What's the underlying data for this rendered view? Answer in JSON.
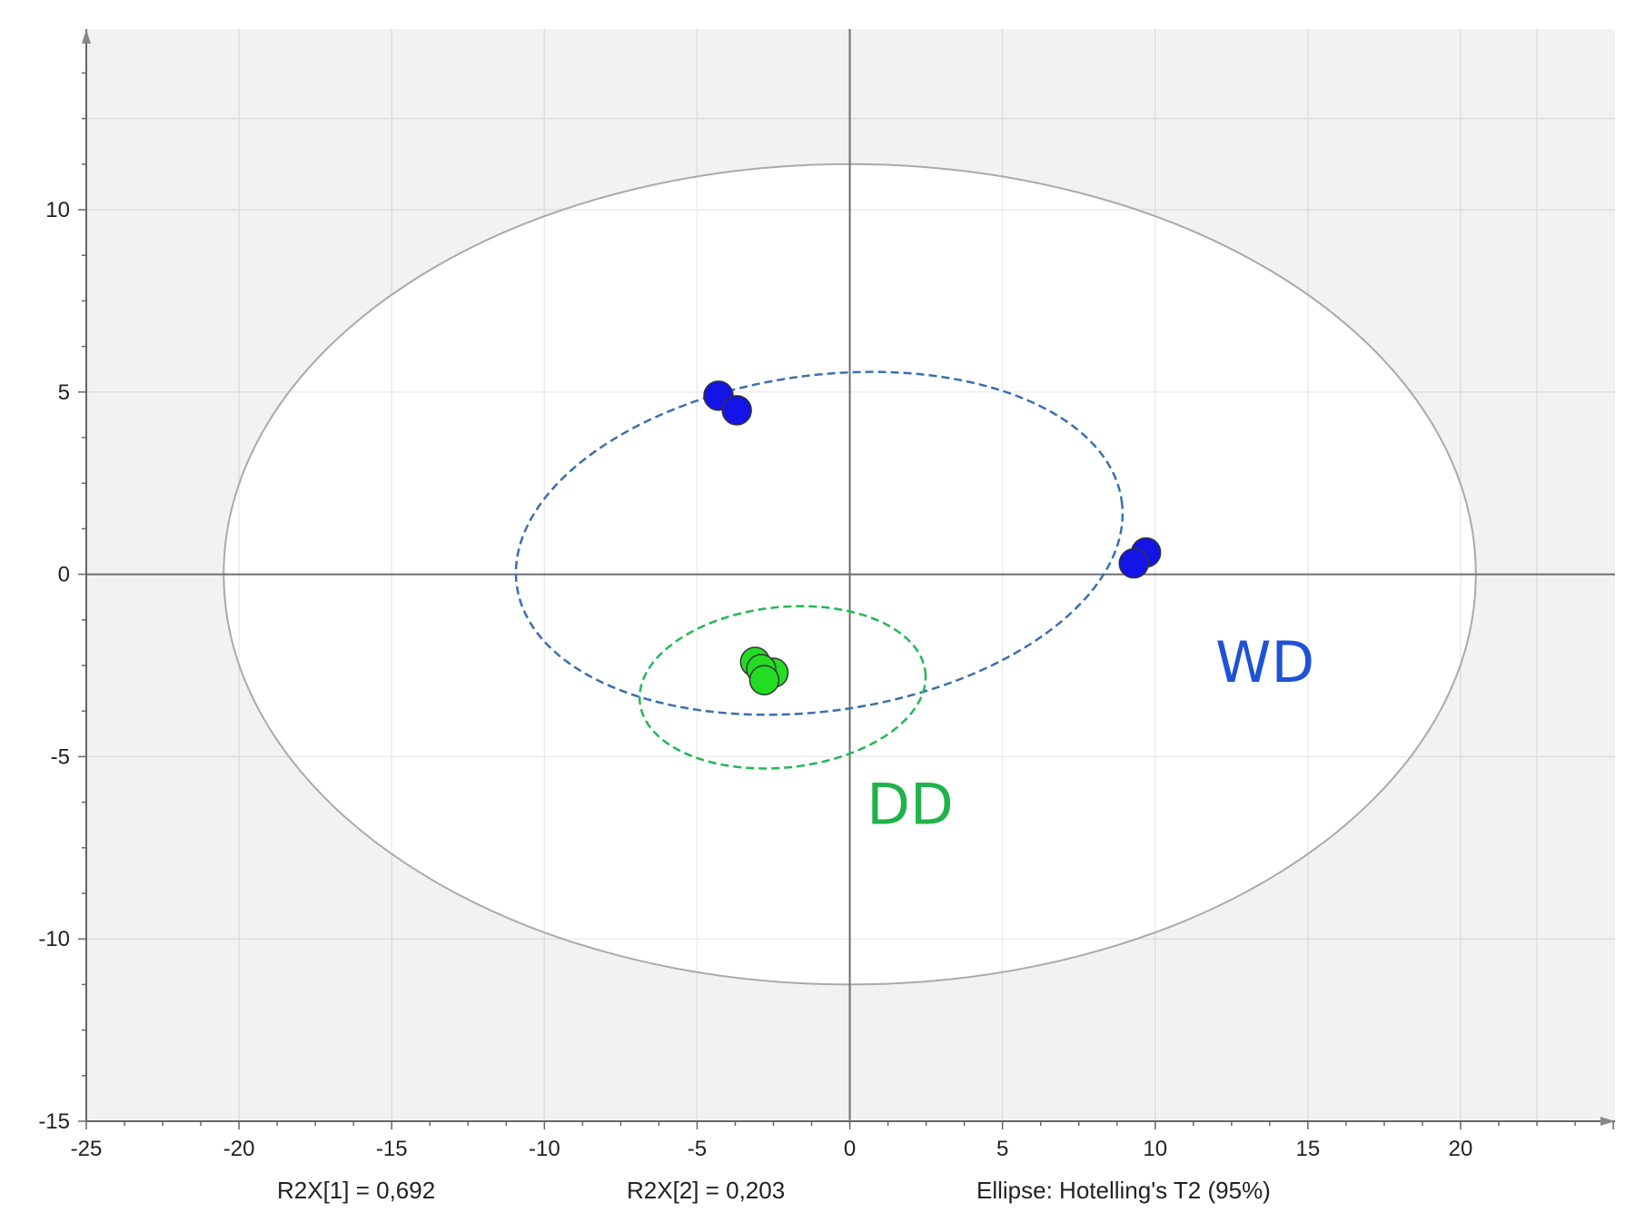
{
  "chart_data": {
    "type": "scatter",
    "title": "",
    "xlabel": "",
    "ylabel": "",
    "xlim": [
      -25,
      25
    ],
    "ylim": [
      -15,
      15
    ],
    "x_ticks": [
      -25,
      -20,
      -15,
      -10,
      -5,
      0,
      5,
      10,
      15,
      20
    ],
    "y_ticks": [
      -15,
      -10,
      -5,
      0,
      5,
      10
    ],
    "x_tick_labels": [
      "-25",
      "-20",
      "-15",
      "-10",
      "-5",
      "0",
      "5",
      "10",
      "15",
      "20"
    ],
    "y_tick_labels": [
      "-15",
      "-10",
      "-5",
      "0",
      "5",
      "10"
    ],
    "grid": true,
    "series": [
      {
        "name": "WD",
        "color": "#1414e6",
        "points": [
          {
            "x": -4.3,
            "y": 4.9
          },
          {
            "x": -3.7,
            "y": 4.5
          },
          {
            "x": 9.7,
            "y": 0.6
          },
          {
            "x": 9.3,
            "y": 0.3
          }
        ],
        "ellipse": {
          "cx": -1.0,
          "cy": 0.85,
          "rx": 10.0,
          "ry": 4.6,
          "angle_deg": -8,
          "color": "#3a6faf"
        }
      },
      {
        "name": "DD",
        "color": "#22dd22",
        "points": [
          {
            "x": -2.5,
            "y": -2.7
          },
          {
            "x": -3.1,
            "y": -2.4
          },
          {
            "x": -2.9,
            "y": -2.6
          },
          {
            "x": -2.8,
            "y": -2.9
          }
        ],
        "ellipse": {
          "cx": -2.2,
          "cy": -3.1,
          "rx": 4.7,
          "ry": 2.2,
          "angle_deg": -6,
          "color": "#22b855"
        }
      }
    ],
    "hotelling_ellipse": {
      "cx": 0,
      "cy": 0,
      "rx": 20.5,
      "ry": 11.25,
      "color": "#aaaaaa"
    },
    "annotations": [
      {
        "text": "WD",
        "x": 13.7,
        "y": -2.4,
        "color": "#1f52d6"
      },
      {
        "text": "DD",
        "x": 2.4,
        "y": -6.3,
        "color": "#22b24c"
      }
    ],
    "footer": {
      "r2x1": "R2X[1] = 0,692",
      "r2x2": "R2X[2] = 0,203",
      "ellipse_note": "Ellipse: Hotelling's T2 (95%)"
    }
  },
  "colors": {
    "plot_background": "#f2f2f2",
    "ellipse_fill": "#ffffff",
    "grid": "#dedede",
    "axis": "#666666"
  }
}
